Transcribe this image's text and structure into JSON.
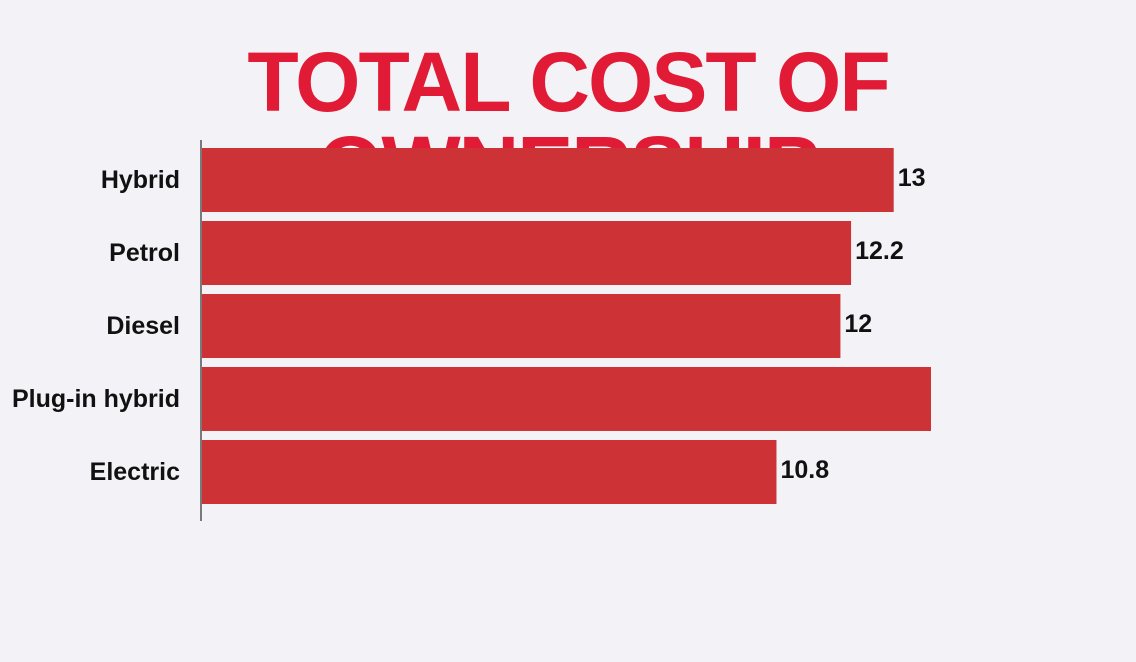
{
  "chart_data": {
    "type": "bar",
    "orientation": "horizontal",
    "title": "TOTAL COST OF OWNERSHIP",
    "xlabel": "",
    "ylabel": "",
    "categories": [
      "Hybrid",
      "Petrol",
      "Diesel",
      "Plug-in hybrid",
      "Electric"
    ],
    "values": [
      13,
      12.2,
      12,
      13.7,
      10.8
    ],
    "value_labels": [
      "13",
      "12.2",
      "12",
      "",
      "10.8"
    ],
    "xlim": [
      0,
      13.7
    ],
    "grid": false,
    "legend": "none",
    "colors": {
      "bar": "#cd3237",
      "title": "#e11b36",
      "text": "#111111",
      "axis": "#7a7a7a",
      "background": "#f3f2f7"
    }
  }
}
